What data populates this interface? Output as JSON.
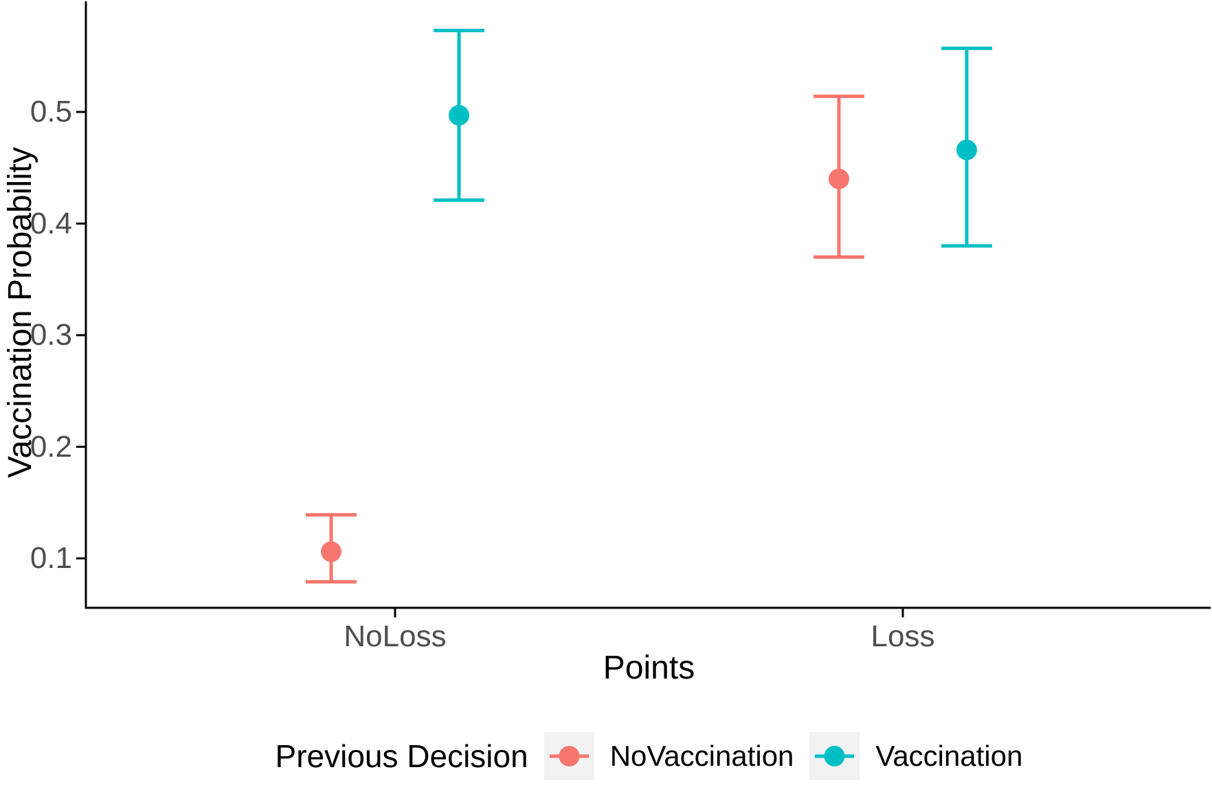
{
  "chart_data": {
    "type": "scatter",
    "subtype": "pointrange-with-errorbars",
    "title": "",
    "xlabel": "Points",
    "ylabel": "Vaccination Probability",
    "categories": [
      "NoLoss",
      "Loss"
    ],
    "y_ticks": [
      "0.1",
      "0.2",
      "0.3",
      "0.4",
      "0.5"
    ],
    "ylim": [
      0.056,
      0.6
    ],
    "grid": "off",
    "legend_position": "bottom",
    "series": [
      {
        "name": "NoVaccination",
        "color": "#F8766D",
        "points": [
          {
            "category": "NoLoss",
            "value": 0.106,
            "ci_low": 0.079,
            "ci_high": 0.139
          },
          {
            "category": "Loss",
            "value": 0.44,
            "ci_low": 0.37,
            "ci_high": 0.514
          }
        ]
      },
      {
        "name": "Vaccination",
        "color": "#00BFC4",
        "points": [
          {
            "category": "NoLoss",
            "value": 0.497,
            "ci_low": 0.421,
            "ci_high": 0.573
          },
          {
            "category": "Loss",
            "value": 0.466,
            "ci_low": 0.38,
            "ci_high": 0.557
          }
        ]
      }
    ]
  },
  "axes": {
    "x_title": "Points",
    "y_title": "Vaccination Probability"
  },
  "legend": {
    "title": "Previous Decision",
    "items": [
      {
        "label": "NoVaccination",
        "color": "#F8766D"
      },
      {
        "label": "Vaccination",
        "color": "#00BFC4"
      }
    ]
  },
  "colors": {
    "axis_line": "#000000",
    "axis_text": "#4D4D4D",
    "legend_key_background": "#F2F2F2"
  }
}
